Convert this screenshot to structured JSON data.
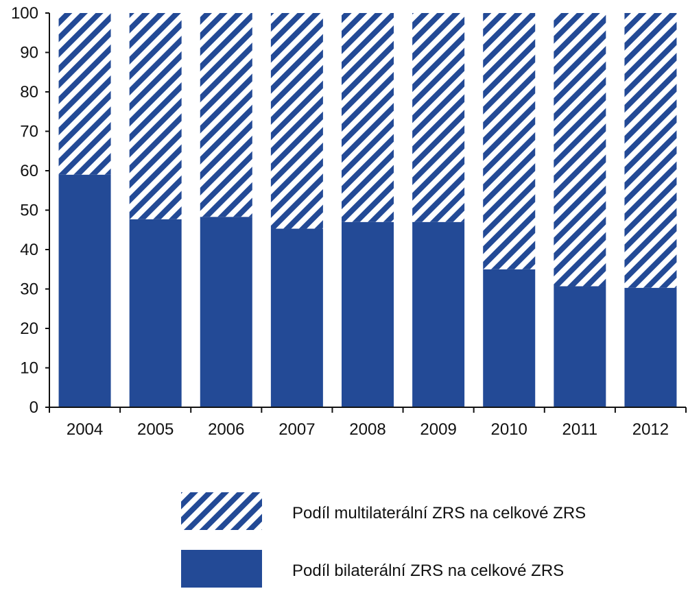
{
  "chart_data": {
    "type": "bar",
    "stacked": true,
    "categories": [
      "2004",
      "2005",
      "2006",
      "2007",
      "2008",
      "2009",
      "2010",
      "2011",
      "2012"
    ],
    "series": [
      {
        "name": "Podíl bilaterální ZRS na celkové ZRS",
        "values": [
          59,
          47.7,
          48.3,
          45.3,
          47,
          47,
          35,
          30.7,
          30.3
        ],
        "color": "#234a96",
        "fill": "solid"
      },
      {
        "name": "Podíl multilaterální ZRS na celkové ZRS",
        "values": [
          41,
          52.3,
          51.7,
          54.7,
          53,
          53,
          65,
          69.3,
          69.7
        ],
        "color": "#234a96",
        "fill": "diagonal-stripes"
      }
    ],
    "yticks": [
      0,
      10,
      20,
      30,
      40,
      50,
      60,
      70,
      80,
      90,
      100
    ],
    "ylim": [
      0,
      100
    ],
    "title": "",
    "xlabel": "",
    "ylabel": "",
    "grid": false,
    "legend_position": "bottom-right"
  },
  "legend": {
    "items": [
      {
        "label": "Podíl multilaterální ZRS na celkové ZRS",
        "fill": "diagonal-stripes",
        "color": "#234a96"
      },
      {
        "label": "Podíl bilaterální ZRS na celkové ZRS",
        "fill": "solid",
        "color": "#234a96"
      }
    ]
  }
}
